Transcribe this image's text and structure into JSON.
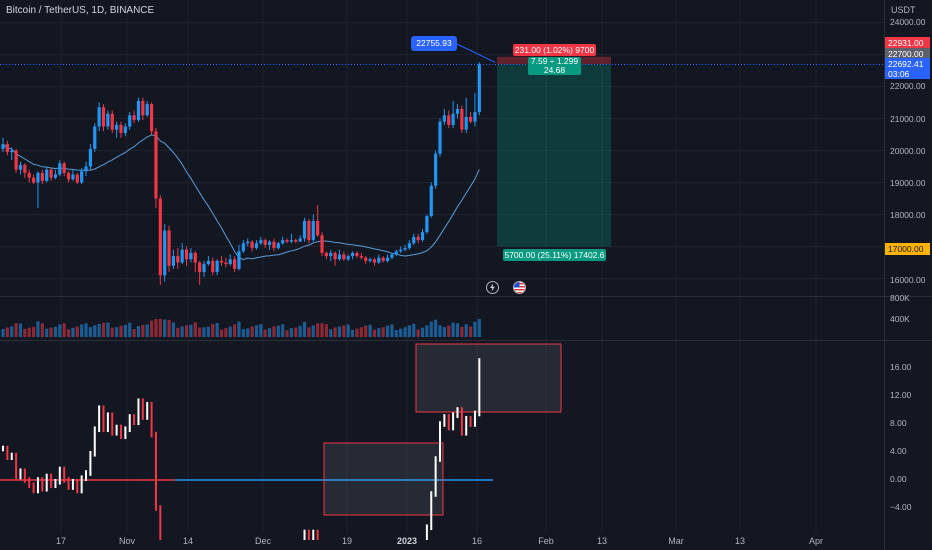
{
  "header": {
    "symbol_title": "Bitcoin / TetherUS, 1D, BINANCE",
    "currency": "USDT"
  },
  "price_axis": {
    "ticks": [
      "24000.00",
      "23000.00",
      "22000.00",
      "21000.00",
      "20000.00",
      "19000.00",
      "18000.00",
      "17000.00",
      "16000.00"
    ],
    "volume_ticks": [
      "800K",
      "400K"
    ],
    "oscillator_ticks": [
      "16.00",
      "12.00",
      "8.00",
      "4.00",
      "0.00",
      "−4.00"
    ]
  },
  "price_tags": {
    "target": "22931.00",
    "entry": "22700.00",
    "last_price": "22692.41",
    "countdown": "03:06",
    "stop": "17000.00"
  },
  "time_axis": {
    "labels": [
      "17",
      "Nov",
      "14",
      "Dec",
      "19",
      "2023",
      "16",
      "Feb",
      "13",
      "Mar",
      "13",
      "Apr"
    ]
  },
  "position_tool": {
    "target_label": "231.00 (1.02%) 9700",
    "ratio_label": "7.59 ÷ 1.299",
    "qty_label": "24.68",
    "stop_label": "5700.00 (25.11%) 17402.6"
  },
  "crosshair": {
    "price_label": "22755.93"
  },
  "colors": {
    "background": "#131722",
    "up": "#2196f3",
    "down": "#f23645",
    "target_zone": "#089981",
    "stop_zone": "#f23645",
    "ma_line": "#5b9bd5"
  },
  "icons": [
    "lightning-icon",
    "us-flag-icon"
  ],
  "chart_data": {
    "type": "candlestick",
    "symbol": "Bitcoin / TetherUS",
    "ylim": [
      15700,
      24500
    ],
    "candles": [
      {
        "o": 20050,
        "c": 20200,
        "h": 20400,
        "l": 19950
      },
      {
        "o": 20200,
        "c": 19950,
        "h": 20300,
        "l": 19850
      },
      {
        "o": 19950,
        "c": 20000,
        "h": 20100,
        "l": 19700
      },
      {
        "o": 20000,
        "c": 19400,
        "h": 20050,
        "l": 19300
      },
      {
        "o": 19400,
        "c": 19550,
        "h": 19650,
        "l": 19250
      },
      {
        "o": 19550,
        "c": 19300,
        "h": 19600,
        "l": 19150
      },
      {
        "o": 19300,
        "c": 19150,
        "h": 19400,
        "l": 19000
      },
      {
        "o": 19150,
        "c": 19000,
        "h": 19250,
        "l": 18950
      },
      {
        "o": 19000,
        "c": 19300,
        "h": 19350,
        "l": 18200
      },
      {
        "o": 19300,
        "c": 19050,
        "h": 19400,
        "l": 18950
      },
      {
        "o": 19050,
        "c": 19400,
        "h": 19500,
        "l": 19000
      },
      {
        "o": 19400,
        "c": 19150,
        "h": 19450,
        "l": 19050
      },
      {
        "o": 19150,
        "c": 19250,
        "h": 19400,
        "l": 19100
      },
      {
        "o": 19250,
        "c": 19600,
        "h": 19700,
        "l": 19200
      },
      {
        "o": 19600,
        "c": 19300,
        "h": 19650,
        "l": 19200
      },
      {
        "o": 19300,
        "c": 19100,
        "h": 19350,
        "l": 19000
      },
      {
        "o": 19100,
        "c": 19250,
        "h": 19400,
        "l": 19050
      },
      {
        "o": 19250,
        "c": 19000,
        "h": 19300,
        "l": 18950
      },
      {
        "o": 19000,
        "c": 19350,
        "h": 19450,
        "l": 18950
      },
      {
        "o": 19350,
        "c": 19500,
        "h": 19650,
        "l": 19200
      },
      {
        "o": 19500,
        "c": 20050,
        "h": 20200,
        "l": 19400
      },
      {
        "o": 20050,
        "c": 20750,
        "h": 20850,
        "l": 19950
      },
      {
        "o": 20750,
        "c": 21350,
        "h": 21500,
        "l": 20600
      },
      {
        "o": 21350,
        "c": 20750,
        "h": 21450,
        "l": 20600
      },
      {
        "o": 20750,
        "c": 21150,
        "h": 21250,
        "l": 20650
      },
      {
        "o": 21150,
        "c": 20650,
        "h": 21250,
        "l": 20550
      },
      {
        "o": 20650,
        "c": 20800,
        "h": 20900,
        "l": 20400
      },
      {
        "o": 20800,
        "c": 20550,
        "h": 20900,
        "l": 20400
      },
      {
        "o": 20550,
        "c": 20750,
        "h": 20850,
        "l": 20450
      },
      {
        "o": 20750,
        "c": 21100,
        "h": 21200,
        "l": 20650
      },
      {
        "o": 21100,
        "c": 20950,
        "h": 21250,
        "l": 20850
      },
      {
        "o": 20950,
        "c": 21550,
        "h": 21650,
        "l": 20900
      },
      {
        "o": 21550,
        "c": 21100,
        "h": 21650,
        "l": 20950
      },
      {
        "o": 21100,
        "c": 21450,
        "h": 21550,
        "l": 21050
      },
      {
        "o": 21450,
        "c": 20600,
        "h": 21500,
        "l": 20500
      },
      {
        "o": 20600,
        "c": 18500,
        "h": 20700,
        "l": 18200
      },
      {
        "o": 18500,
        "c": 16100,
        "h": 18600,
        "l": 15800
      },
      {
        "o": 16100,
        "c": 17500,
        "h": 17700,
        "l": 15900
      },
      {
        "o": 17500,
        "c": 16400,
        "h": 17650,
        "l": 16200
      },
      {
        "o": 16400,
        "c": 16700,
        "h": 16900,
        "l": 16300
      },
      {
        "o": 16700,
        "c": 16500,
        "h": 16950,
        "l": 16300
      },
      {
        "o": 16500,
        "c": 16900,
        "h": 17100,
        "l": 16450
      },
      {
        "o": 16900,
        "c": 16600,
        "h": 17000,
        "l": 16400
      },
      {
        "o": 16600,
        "c": 16800,
        "h": 16950,
        "l": 16500
      },
      {
        "o": 16800,
        "c": 16500,
        "h": 16850,
        "l": 16200
      },
      {
        "o": 16500,
        "c": 16200,
        "h": 16550,
        "l": 15800
      },
      {
        "o": 16200,
        "c": 16450,
        "h": 16550,
        "l": 16050
      },
      {
        "o": 16450,
        "c": 16550,
        "h": 16700,
        "l": 16400
      },
      {
        "o": 16550,
        "c": 16200,
        "h": 16650,
        "l": 16100
      },
      {
        "o": 16200,
        "c": 16550,
        "h": 16600,
        "l": 16100
      },
      {
        "o": 16550,
        "c": 16500,
        "h": 16700,
        "l": 16400
      },
      {
        "o": 16500,
        "c": 16450,
        "h": 16650,
        "l": 16350
      },
      {
        "o": 16450,
        "c": 16600,
        "h": 16750,
        "l": 16400
      },
      {
        "o": 16600,
        "c": 16300,
        "h": 16700,
        "l": 16200
      },
      {
        "o": 16300,
        "c": 16850,
        "h": 17050,
        "l": 16250
      },
      {
        "o": 16850,
        "c": 17100,
        "h": 17200,
        "l": 16800
      },
      {
        "o": 17100,
        "c": 17150,
        "h": 17250,
        "l": 17000
      },
      {
        "o": 17150,
        "c": 16950,
        "h": 17200,
        "l": 16850
      },
      {
        "o": 16950,
        "c": 17100,
        "h": 17200,
        "l": 16900
      },
      {
        "o": 17100,
        "c": 17200,
        "h": 17300,
        "l": 17050
      },
      {
        "o": 17200,
        "c": 17050,
        "h": 17250,
        "l": 16950
      },
      {
        "o": 17050,
        "c": 17150,
        "h": 17200,
        "l": 16900
      },
      {
        "o": 17150,
        "c": 16950,
        "h": 17250,
        "l": 16850
      },
      {
        "o": 16950,
        "c": 17100,
        "h": 17150,
        "l": 16900
      },
      {
        "o": 17100,
        "c": 17200,
        "h": 17300,
        "l": 17050
      },
      {
        "o": 17200,
        "c": 17150,
        "h": 17250,
        "l": 17100
      },
      {
        "o": 17150,
        "c": 17200,
        "h": 17400,
        "l": 17100
      },
      {
        "o": 17200,
        "c": 17150,
        "h": 17250,
        "l": 17100
      },
      {
        "o": 17150,
        "c": 17250,
        "h": 17350,
        "l": 17150
      },
      {
        "o": 17250,
        "c": 17800,
        "h": 17900,
        "l": 17150
      },
      {
        "o": 17800,
        "c": 17200,
        "h": 17850,
        "l": 17100
      },
      {
        "o": 17200,
        "c": 17800,
        "h": 18000,
        "l": 17150
      },
      {
        "o": 17800,
        "c": 17350,
        "h": 18300,
        "l": 17300
      },
      {
        "o": 17350,
        "c": 16800,
        "h": 17450,
        "l": 16700
      },
      {
        "o": 16800,
        "c": 16700,
        "h": 16850,
        "l": 16600
      },
      {
        "o": 16700,
        "c": 16800,
        "h": 16900,
        "l": 16550
      },
      {
        "o": 16800,
        "c": 16600,
        "h": 16850,
        "l": 16400
      },
      {
        "o": 16600,
        "c": 16750,
        "h": 16900,
        "l": 16550
      },
      {
        "o": 16750,
        "c": 16600,
        "h": 16850,
        "l": 16550
      },
      {
        "o": 16600,
        "c": 16700,
        "h": 16750,
        "l": 16550
      },
      {
        "o": 16700,
        "c": 16800,
        "h": 16850,
        "l": 16600
      },
      {
        "o": 16800,
        "c": 16700,
        "h": 16850,
        "l": 16650
      },
      {
        "o": 16700,
        "c": 16650,
        "h": 16800,
        "l": 16600
      },
      {
        "o": 16650,
        "c": 16550,
        "h": 16700,
        "l": 16450
      },
      {
        "o": 16550,
        "c": 16600,
        "h": 16650,
        "l": 16500
      },
      {
        "o": 16600,
        "c": 16500,
        "h": 16650,
        "l": 16400
      },
      {
        "o": 16500,
        "c": 16650,
        "h": 16750,
        "l": 16450
      },
      {
        "o": 16650,
        "c": 16550,
        "h": 16700,
        "l": 16500
      },
      {
        "o": 16550,
        "c": 16650,
        "h": 16750,
        "l": 16500
      },
      {
        "o": 16650,
        "c": 16750,
        "h": 16800,
        "l": 16600
      },
      {
        "o": 16750,
        "c": 16850,
        "h": 16900,
        "l": 16700
      },
      {
        "o": 16850,
        "c": 16900,
        "h": 17000,
        "l": 16800
      },
      {
        "o": 16900,
        "c": 16950,
        "h": 17050,
        "l": 16850
      },
      {
        "o": 16950,
        "c": 17100,
        "h": 17200,
        "l": 16900
      },
      {
        "o": 17100,
        "c": 17300,
        "h": 17400,
        "l": 17050
      },
      {
        "o": 17300,
        "c": 17200,
        "h": 17400,
        "l": 17100
      },
      {
        "o": 17200,
        "c": 17450,
        "h": 17550,
        "l": 17150
      },
      {
        "o": 17450,
        "c": 17950,
        "h": 18000,
        "l": 17400
      },
      {
        "o": 17950,
        "c": 18900,
        "h": 19000,
        "l": 17900
      },
      {
        "o": 18900,
        "c": 19900,
        "h": 20000,
        "l": 18800
      },
      {
        "o": 19900,
        "c": 20900,
        "h": 21000,
        "l": 19800
      },
      {
        "o": 20900,
        "c": 21100,
        "h": 21300,
        "l": 20800
      },
      {
        "o": 21100,
        "c": 20800,
        "h": 21250,
        "l": 20700
      },
      {
        "o": 20800,
        "c": 21150,
        "h": 21550,
        "l": 20700
      },
      {
        "o": 21150,
        "c": 21300,
        "h": 21450,
        "l": 21000
      },
      {
        "o": 21300,
        "c": 20650,
        "h": 21400,
        "l": 20550
      },
      {
        "o": 20650,
        "c": 21050,
        "h": 21650,
        "l": 20550
      },
      {
        "o": 21050,
        "c": 20900,
        "h": 21200,
        "l": 20850
      },
      {
        "o": 20900,
        "c": 21200,
        "h": 21800,
        "l": 20750
      },
      {
        "o": 21200,
        "c": 22700,
        "h": 22760,
        "l": 21100
      }
    ]
  }
}
